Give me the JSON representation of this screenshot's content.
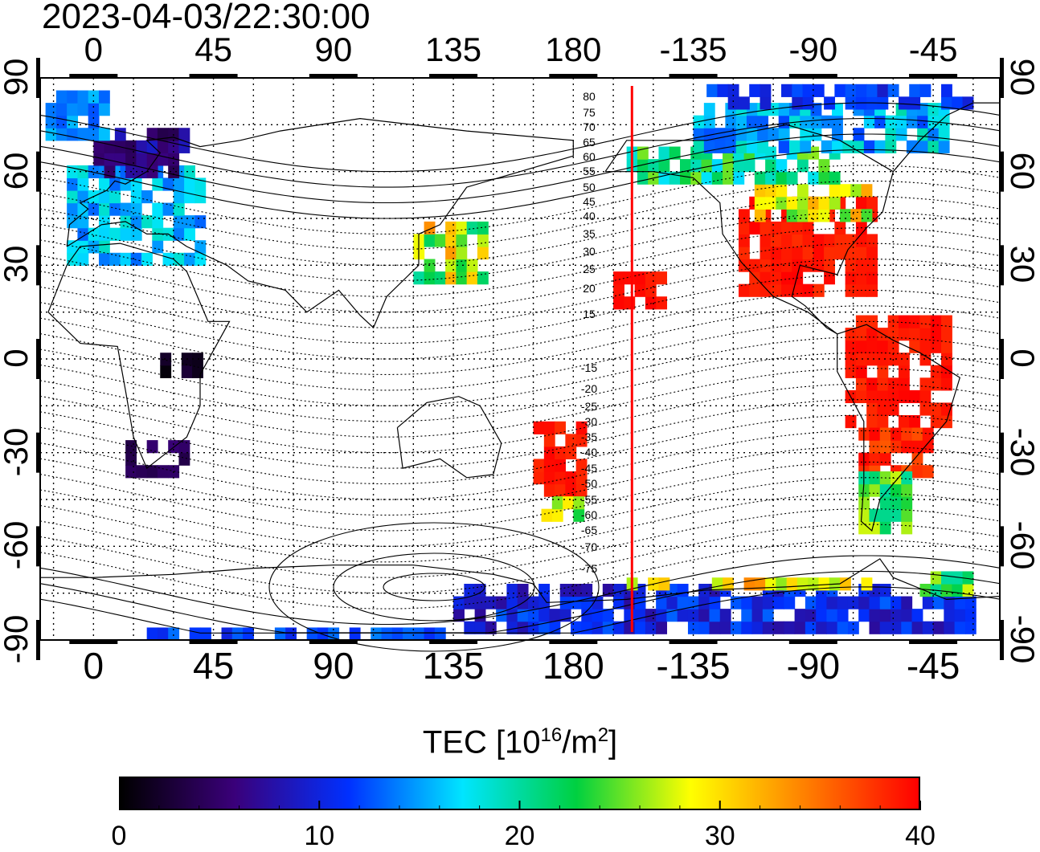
{
  "header": {
    "timestamp": "2023-04-03/22:30:00"
  },
  "map": {
    "projection": "equirectangular",
    "lon_range": [
      -20,
      340
    ],
    "lat_range": [
      -90,
      90
    ],
    "top_lon_ticks": [
      "0",
      "45",
      "90",
      "135",
      "180",
      "-135",
      "-90",
      "-45"
    ],
    "bottom_lon_ticks": [
      "0",
      "45",
      "90",
      "135",
      "180",
      "-135",
      "-90",
      "-45"
    ],
    "left_lat_ticks": [
      "90",
      "60",
      "30",
      "0",
      "-30",
      "-60",
      "-90"
    ],
    "right_lat_ticks": [
      "90",
      "60",
      "30",
      "0",
      "-30",
      "-60",
      "-90"
    ],
    "terminator_color": "#ff0000",
    "terminator_lon": -158,
    "contour_labels_north": [
      "80",
      "75",
      "70",
      "65",
      "60",
      "55",
      "50",
      "45",
      "40",
      "35",
      "30",
      "25",
      "20",
      "15"
    ],
    "contour_labels_south": [
      "-15",
      "-20",
      "-25",
      "-30",
      "-35",
      "-40",
      "-45",
      "-50",
      "-55",
      "-60",
      "-65",
      "-70",
      "-75"
    ]
  },
  "colorbar": {
    "title_prefix": "TEC  [10",
    "title_sup1": "16",
    "title_mid": "/m",
    "title_sup2": "2",
    "title_suffix": "]",
    "min": 0,
    "max": 40,
    "ticks": [
      "0",
      "10",
      "20",
      "30",
      "40"
    ],
    "colors": [
      "#000000",
      "#3a007a",
      "#0030ff",
      "#00e5ff",
      "#00d040",
      "#ffff00",
      "#ff8000",
      "#ff0000"
    ]
  }
}
